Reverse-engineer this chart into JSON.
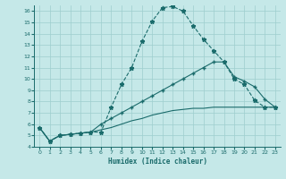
{
  "xlabel": "Humidex (Indice chaleur)",
  "bg_color": "#c5e8e8",
  "grid_color": "#9ecece",
  "line_color": "#1a6b6b",
  "xlim": [
    -0.5,
    23.5
  ],
  "ylim": [
    4,
    16.5
  ],
  "xticks": [
    0,
    1,
    2,
    3,
    4,
    5,
    6,
    7,
    8,
    9,
    10,
    11,
    12,
    13,
    14,
    15,
    16,
    17,
    18,
    19,
    20,
    21,
    22,
    23
  ],
  "yticks": [
    4,
    5,
    6,
    7,
    8,
    9,
    10,
    11,
    12,
    13,
    14,
    15,
    16
  ],
  "curve1_x": [
    0,
    1,
    2,
    3,
    4,
    5,
    6,
    7,
    8,
    9,
    10,
    11,
    12,
    13,
    14,
    15,
    16,
    17,
    18,
    19,
    20,
    21,
    22,
    23
  ],
  "curve1_y": [
    5.7,
    4.5,
    5.0,
    5.1,
    5.2,
    5.3,
    5.3,
    7.5,
    9.5,
    11.0,
    13.3,
    15.1,
    16.3,
    16.4,
    16.0,
    14.7,
    13.5,
    12.5,
    11.5,
    10.0,
    9.5,
    8.1,
    7.5,
    7.5
  ],
  "curve2_x": [
    0,
    1,
    2,
    3,
    4,
    5,
    6,
    7,
    8,
    9,
    10,
    11,
    12,
    13,
    14,
    15,
    16,
    17,
    18,
    19,
    20,
    21,
    22,
    23
  ],
  "curve2_y": [
    5.7,
    4.5,
    5.0,
    5.1,
    5.2,
    5.3,
    6.0,
    6.5,
    7.0,
    7.5,
    8.0,
    8.5,
    9.0,
    9.5,
    10.0,
    10.5,
    11.0,
    11.5,
    11.5,
    10.2,
    9.8,
    9.3,
    8.2,
    7.5
  ],
  "curve3_x": [
    0,
    1,
    2,
    3,
    4,
    5,
    6,
    7,
    8,
    9,
    10,
    11,
    12,
    13,
    14,
    15,
    16,
    17,
    18,
    19,
    20,
    21,
    22,
    23
  ],
  "curve3_y": [
    5.7,
    4.5,
    5.0,
    5.1,
    5.2,
    5.3,
    5.5,
    5.7,
    6.0,
    6.3,
    6.5,
    6.8,
    7.0,
    7.2,
    7.3,
    7.4,
    7.4,
    7.5,
    7.5,
    7.5,
    7.5,
    7.5,
    7.5,
    7.5
  ]
}
